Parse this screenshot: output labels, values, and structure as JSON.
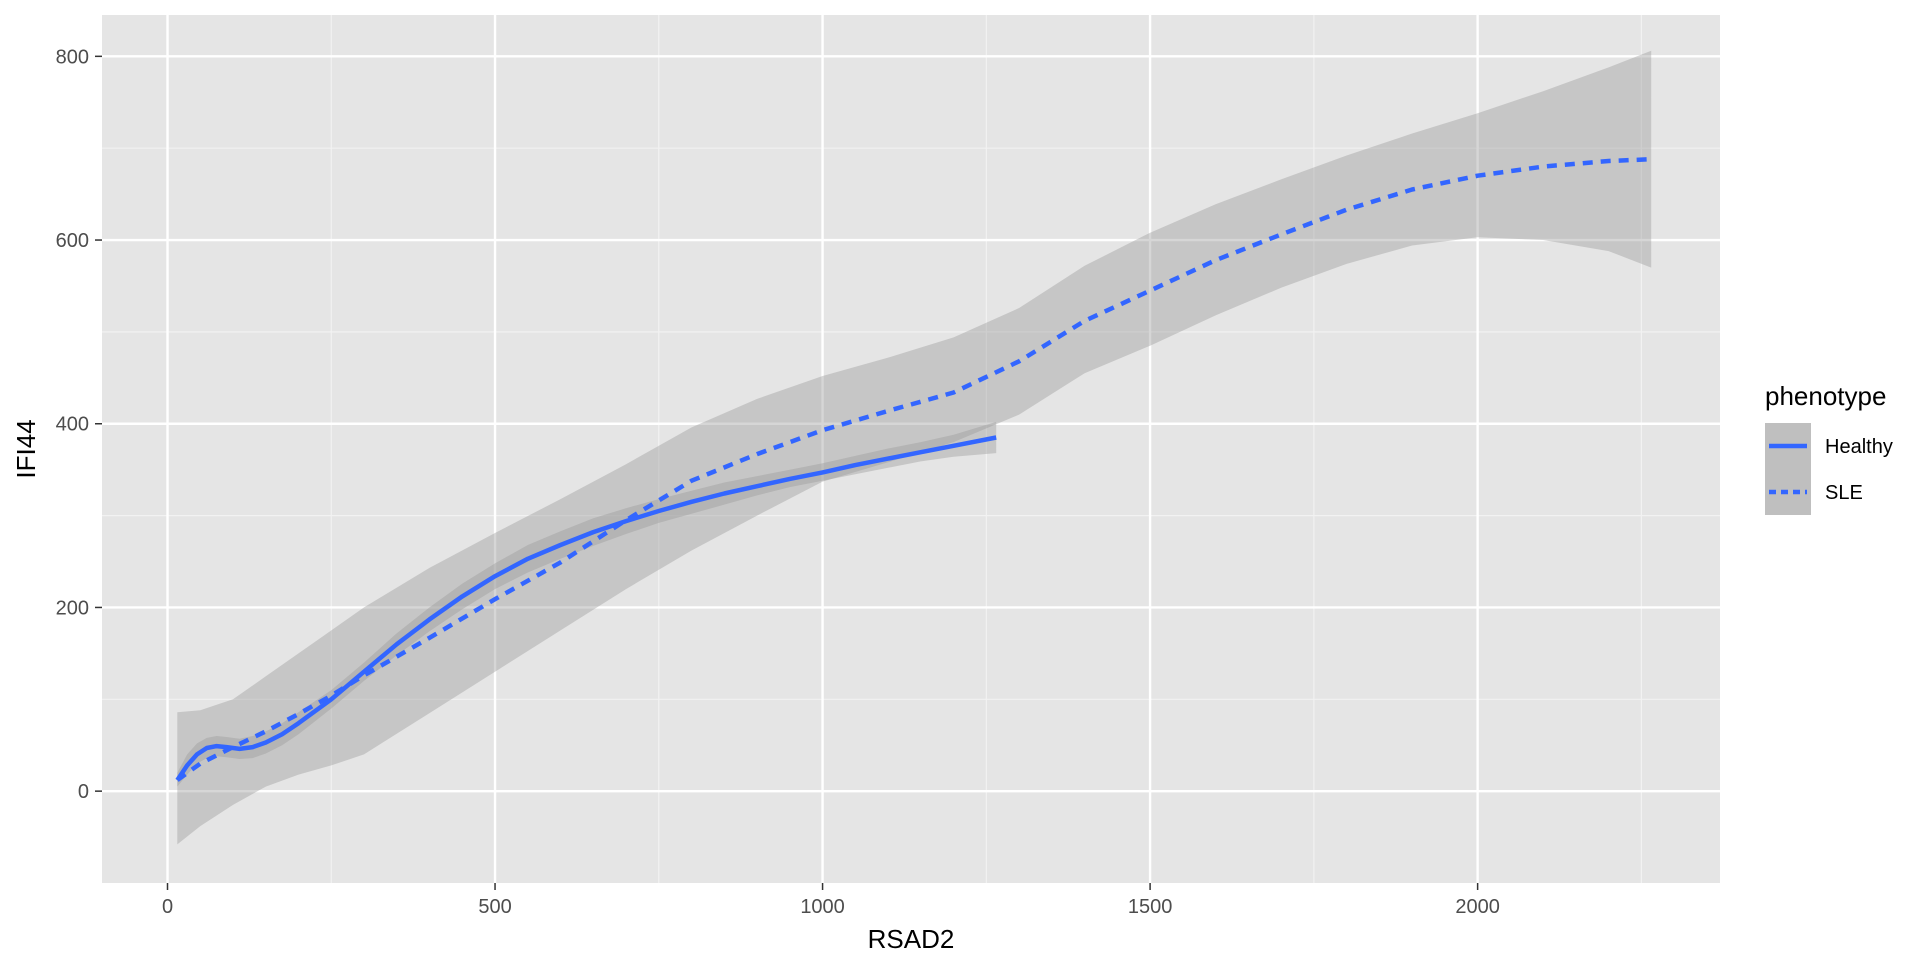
{
  "chart_data": {
    "type": "line",
    "title": "",
    "xlabel": "RSAD2",
    "ylabel": "IFI44",
    "xlim": [
      -100,
      2370
    ],
    "ylim": [
      -100,
      845
    ],
    "x_ticks": [
      0,
      500,
      1000,
      1500,
      2000
    ],
    "x_tick_labels": [
      "0",
      "500",
      "1000",
      "1500",
      "2000"
    ],
    "y_ticks": [
      0,
      200,
      400,
      600,
      800
    ],
    "y_tick_labels": [
      "0",
      "200",
      "400",
      "600",
      "800"
    ],
    "x_minor_ticks": [
      250,
      750,
      1250,
      1750,
      2250
    ],
    "y_minor_ticks": [
      100,
      300,
      500,
      700
    ],
    "grid": true,
    "panel_background": "#e5e5e5",
    "legend": {
      "title": "phenotype",
      "placement": "right",
      "entries": [
        "Healthy",
        "SLE"
      ]
    },
    "series": [
      {
        "name": "Healthy",
        "line_style": "solid",
        "color": "#3366ff",
        "x": [
          15,
          30,
          45,
          60,
          75,
          90,
          110,
          130,
          150,
          175,
          200,
          250,
          300,
          350,
          400,
          450,
          500,
          550,
          600,
          650,
          700,
          750,
          800,
          850,
          900,
          950,
          1000,
          1050,
          1100,
          1150,
          1200,
          1265
        ],
        "y": [
          12,
          28,
          40,
          47,
          49,
          48,
          46,
          48,
          53,
          62,
          74,
          100,
          130,
          160,
          187,
          212,
          234,
          253,
          268,
          282,
          294,
          305,
          315,
          324,
          332,
          340,
          347,
          355,
          362,
          369,
          376,
          385
        ],
        "ci_lower": [
          5,
          18,
          30,
          36,
          38,
          37,
          35,
          36,
          41,
          50,
          62,
          90,
          120,
          148,
          174,
          198,
          220,
          238,
          253,
          267,
          280,
          292,
          302,
          312,
          322,
          331,
          338,
          345,
          352,
          359,
          364,
          368
        ],
        "ci_upper": [
          20,
          40,
          52,
          58,
          60,
          59,
          57,
          60,
          65,
          74,
          86,
          110,
          140,
          172,
          200,
          226,
          248,
          268,
          283,
          297,
          308,
          318,
          327,
          336,
          343,
          350,
          357,
          365,
          373,
          380,
          388,
          402
        ]
      },
      {
        "name": "SLE",
        "line_style": "dashed",
        "color": "#3366ff",
        "x": [
          15,
          50,
          100,
          150,
          200,
          250,
          300,
          400,
          500,
          600,
          700,
          800,
          900,
          1000,
          1100,
          1200,
          1300,
          1400,
          1500,
          1600,
          1700,
          1800,
          1900,
          2000,
          2100,
          2200,
          2265
        ],
        "y": [
          12,
          30,
          48,
          65,
          84,
          104,
          126,
          167,
          209,
          249,
          295,
          338,
          367,
          393,
          414,
          434,
          468,
          512,
          545,
          578,
          606,
          633,
          655,
          670,
          680,
          686,
          688
        ],
        "ci_lower": [
          -58,
          -38,
          -15,
          5,
          18,
          28,
          40,
          85,
          130,
          175,
          220,
          262,
          300,
          337,
          358,
          380,
          410,
          455,
          485,
          518,
          548,
          574,
          594,
          603,
          600,
          588,
          570
        ],
        "ci_upper": [
          86,
          88,
          100,
          125,
          150,
          175,
          200,
          243,
          281,
          318,
          356,
          396,
          427,
          452,
          472,
          494,
          526,
          572,
          608,
          639,
          666,
          692,
          716,
          738,
          762,
          788,
          806
        ]
      }
    ]
  }
}
